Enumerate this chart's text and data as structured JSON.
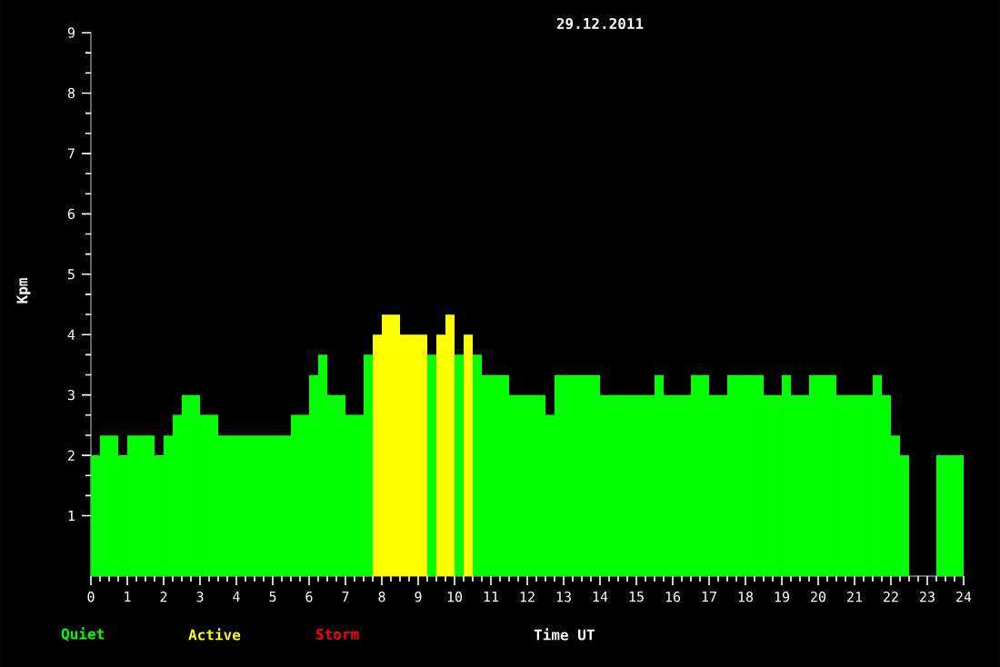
{
  "chart_data": {
    "type": "histogram",
    "title": "29.12.2011",
    "xlabel": "Time UT",
    "ylabel": "Kpm",
    "bins": [
      0,
      0.25,
      0.75,
      1,
      1.75,
      2,
      2.25,
      2.5,
      3,
      3.5,
      5.5,
      6,
      6.25,
      6.5,
      7,
      7.5,
      7.75,
      8,
      8.5,
      9.25,
      9.5,
      9.75,
      10,
      10.25,
      10.5,
      10.75,
      11.5,
      12.5,
      12.75,
      14,
      15.5,
      15.75,
      16.5,
      17,
      17.5,
      18.5,
      19,
      19.25,
      19.75,
      20.5,
      21.5,
      21.75,
      22,
      22.25,
      22.5,
      23.25,
      24
    ],
    "series": [
      {
        "name": "Quiet",
        "color": "#00ff00",
        "values": [
          2,
          2.33,
          2,
          2.33,
          2,
          2.33,
          2.67,
          3,
          2.67,
          2.33,
          2.67,
          3.33,
          3.67,
          3,
          2.67,
          3.67,
          null,
          null,
          null,
          3.67,
          null,
          null,
          3.67,
          null,
          3.67,
          3.33,
          3,
          2.67,
          3.33,
          3,
          3.33,
          3,
          3.33,
          3,
          3.33,
          3,
          3.33,
          3,
          3.33,
          3,
          3.33,
          3,
          2.33,
          2,
          null,
          2
        ]
      },
      {
        "name": "Active",
        "color": "#ffff00",
        "values": [
          null,
          null,
          null,
          null,
          null,
          null,
          null,
          null,
          null,
          null,
          null,
          null,
          null,
          null,
          null,
          null,
          4,
          4.33,
          4,
          null,
          4,
          4.33,
          null,
          4,
          null,
          null,
          null,
          null,
          null,
          null,
          null,
          null,
          null,
          null,
          null,
          null,
          null,
          null,
          null,
          null,
          null,
          null,
          null,
          null,
          null,
          null
        ]
      }
    ],
    "annotations": [
      "Storm"
    ],
    "xlim": [
      0,
      24
    ],
    "xticks": [
      0,
      1,
      2,
      3,
      4,
      5,
      6,
      7,
      8,
      9,
      10,
      11,
      12,
      13,
      14,
      15,
      16,
      17,
      18,
      19,
      20,
      21,
      22,
      23,
      24
    ],
    "ylim": [
      0,
      9
    ],
    "yticks": [
      1,
      2,
      3,
      4,
      5,
      6,
      7,
      8,
      9
    ],
    "grid": false,
    "legend": "bottom left"
  }
}
